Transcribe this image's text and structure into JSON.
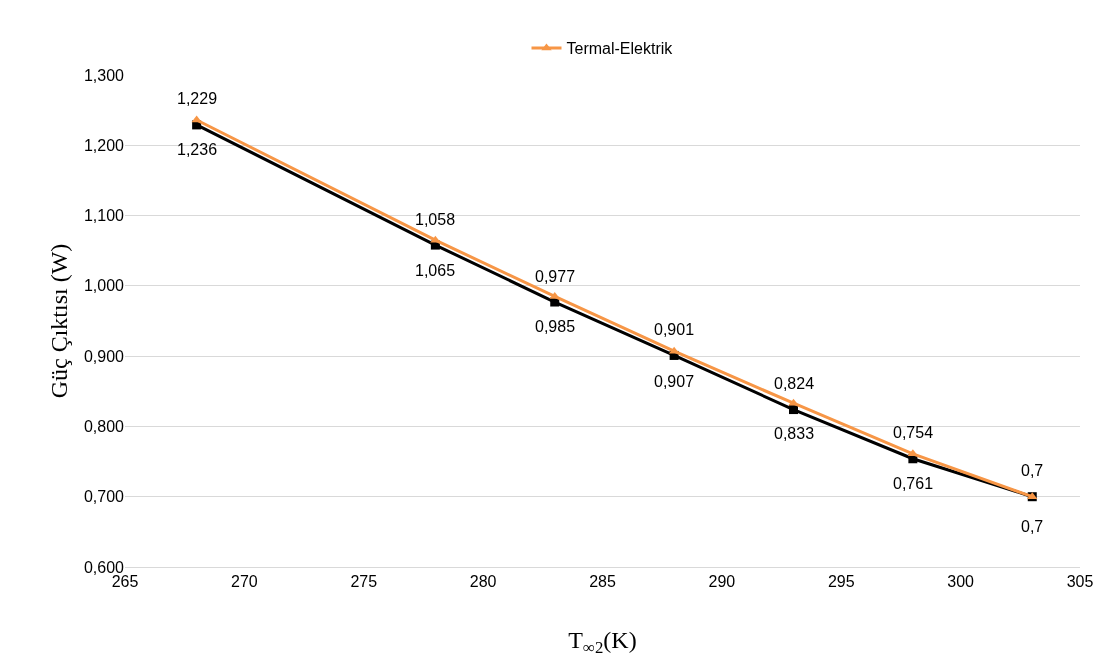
{
  "chart_data": {
    "type": "line",
    "xlabel": "T$_{∞2}$(K)",
    "ylabel": "Güç Çıktısı (W)",
    "x": [
      268,
      278,
      283,
      288,
      293,
      298,
      303
    ],
    "series": [
      {
        "color": "#000000",
        "marker": "square",
        "values": [
          1.229,
          1.058,
          0.977,
          0.901,
          0.824,
          0.754,
          0.7
        ],
        "value_labels": [
          "1,229",
          "1,058",
          "0,977",
          "0,901",
          "0,824",
          "0,754",
          "0,7"
        ]
      },
      {
        "name": "Termal-Elektrik",
        "color": "#f79646",
        "marker": "triangle",
        "values": [
          1.236,
          1.065,
          0.985,
          0.907,
          0.833,
          0.761,
          0.7
        ],
        "value_labels": [
          "1,236",
          "1,065",
          "0,985",
          "0,907",
          "0,833",
          "0,761",
          "0,7"
        ]
      }
    ],
    "xlim": [
      265,
      305
    ],
    "xticks": [
      265,
      270,
      275,
      280,
      285,
      290,
      295,
      300,
      305
    ],
    "ylim": [
      0.6,
      1.3
    ],
    "yticks": [
      {
        "value": 0.6,
        "label": "0,600"
      },
      {
        "value": 0.7,
        "label": "0,700"
      },
      {
        "value": 0.8,
        "label": "0,800"
      },
      {
        "value": 0.9,
        "label": "0,900"
      },
      {
        "value": 1.0,
        "label": "1,000"
      },
      {
        "value": 1.1,
        "label": "1,100"
      },
      {
        "value": 1.2,
        "label": "1,200"
      },
      {
        "value": 1.3,
        "label": "1,300"
      }
    ],
    "grid": "y",
    "legend": "top",
    "line_style": "solid"
  }
}
